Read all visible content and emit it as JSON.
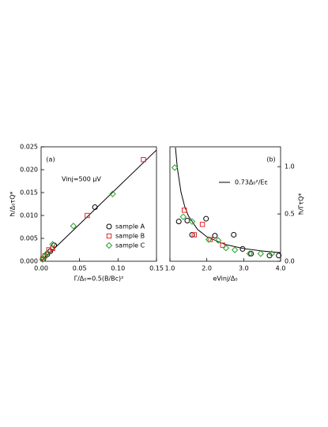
{
  "chart_data": [
    {
      "type": "scatter",
      "panel_label": "(a)",
      "annotation": "Vinj=500 μV",
      "x_label": "Γ/Δ₀=0.5(B/Bc)²",
      "y_label": "ħ/Δ₀τQ*",
      "y_axis_side": "left",
      "legend": "lower right",
      "xlim": [
        0,
        0.15
      ],
      "ylim": [
        0,
        0.025
      ],
      "xticks": [
        {
          "value": 0,
          "label": "0.00"
        },
        {
          "value": 0.05,
          "label": "0.05"
        },
        {
          "value": 0.1,
          "label": "0.10"
        },
        {
          "value": 0.15,
          "label": "0.15"
        }
      ],
      "yticks": [
        {
          "value": 0,
          "label": "0.000"
        },
        {
          "value": 0.005,
          "label": "0.005"
        },
        {
          "value": 0.01,
          "label": "0.010"
        },
        {
          "value": 0.015,
          "label": "0.015"
        },
        {
          "value": 0.02,
          "label": "0.020"
        },
        {
          "value": 0.025,
          "label": "0.025"
        }
      ],
      "series": [
        {
          "marker": "line",
          "color": "#000000",
          "x": [
            0,
            0.15
          ],
          "values": [
            0,
            0.0243
          ]
        },
        {
          "name": "sample A",
          "marker": "circle",
          "color": "#000000",
          "x": [
            0.003,
            0.008,
            0.012,
            0.017,
            0.07
          ],
          "values": [
            0.0005,
            0.0015,
            0.0022,
            0.0035,
            0.0118
          ]
        },
        {
          "name": "sample B",
          "marker": "square",
          "color": "#e8262a",
          "x": [
            0.002,
            0.005,
            0.01,
            0.015,
            0.06,
            0.133
          ],
          "values": [
            0.0005,
            0.0012,
            0.0025,
            0.0028,
            0.01,
            0.0222
          ]
        },
        {
          "name": "sample C",
          "marker": "diamond",
          "color": "#2ca02c",
          "x": [
            0.002,
            0.004,
            0.008,
            0.015,
            0.042,
            0.093
          ],
          "values": [
            0.0004,
            0.001,
            0.0018,
            0.0037,
            0.0077,
            0.0147
          ]
        }
      ]
    },
    {
      "type": "scatter",
      "panel_label": "(b)",
      "x_label": "eVinj/Δ₀",
      "y_label": "ħ/ΓτQ*",
      "y_axis_side": "right",
      "legend": "upper right",
      "xlim": [
        1,
        4
      ],
      "ylim": [
        0,
        1.21
      ],
      "xticks": [
        {
          "value": 1,
          "label": "1.0"
        },
        {
          "value": 2,
          "label": "2.0"
        },
        {
          "value": 3,
          "label": "3.0"
        },
        {
          "value": 4,
          "label": "4.0"
        }
      ],
      "yticks": [
        {
          "value": 0,
          "label": "0.0"
        },
        0.5,
        {
          "value": 1,
          "label": "1.0"
        }
      ],
      "series": [
        {
          "name": "0.73Δ₀²/Eε",
          "marker": "line",
          "color": "#000000",
          "x": [
            1.15,
            1.2,
            1.3,
            1.4,
            1.5,
            1.75,
            2,
            2.5,
            3,
            3.5,
            4
          ],
          "values": [
            1.202,
            0.989,
            0.731,
            0.58,
            0.48,
            0.336,
            0.259,
            0.177,
            0.134,
            0.108,
            0.091
          ]
        },
        {
          "marker": "circle",
          "color": "#000000",
          "x": [
            1.24,
            1.47,
            1.98,
            1.6,
            2.22,
            2.73,
            2.97,
            3.2,
            3.7,
            3.95
          ],
          "values": [
            0.42,
            0.43,
            0.45,
            0.28,
            0.27,
            0.28,
            0.13,
            0.08,
            0.06,
            0.06
          ]
        },
        {
          "marker": "square",
          "color": "#e8262a",
          "x": [
            1.39,
            1.66,
            1.88,
            2.09,
            2.43
          ],
          "values": [
            0.54,
            0.28,
            0.39,
            0.23,
            0.17
          ]
        },
        {
          "marker": "diamond",
          "color": "#2ca02c",
          "x": [
            1.13,
            1.36,
            1.6,
            2.05,
            2.31,
            2.52,
            2.76,
            3.16,
            3.46,
            3.76
          ],
          "values": [
            0.99,
            0.47,
            0.42,
            0.23,
            0.22,
            0.14,
            0.12,
            0.08,
            0.08,
            0.08
          ]
        }
      ]
    }
  ]
}
